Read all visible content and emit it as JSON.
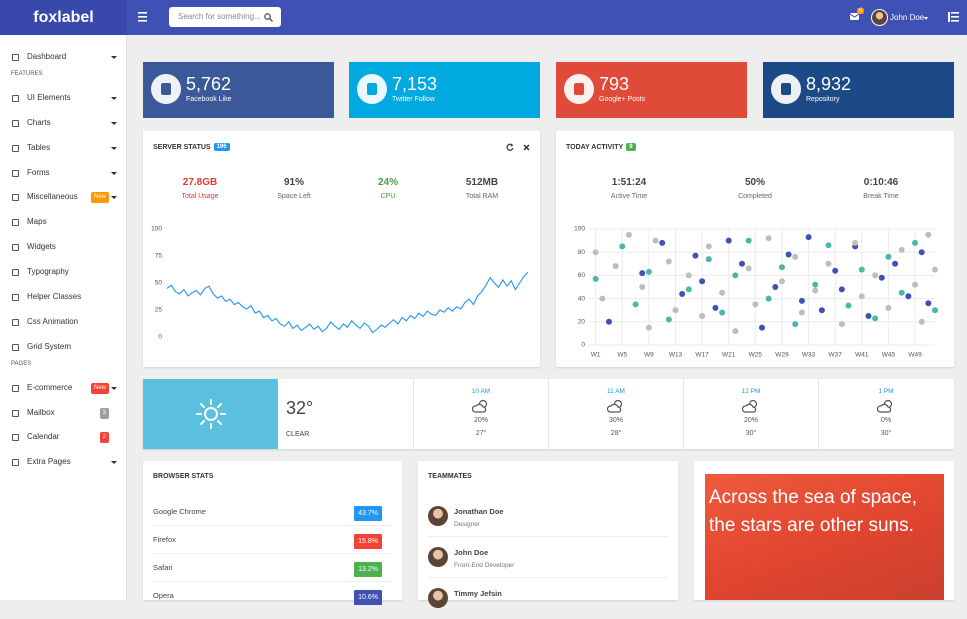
{
  "topbar": {
    "brand": "foxlabel",
    "search_placeholder": "Search for something...",
    "notification_count": "6",
    "user": "John Doe"
  },
  "sidebar": {
    "items": [
      {
        "label": "Dashboard",
        "caret": true
      },
      {
        "section": "FEATURES"
      },
      {
        "label": "UI Elements",
        "caret": true
      },
      {
        "label": "Charts",
        "caret": true
      },
      {
        "label": "Tables",
        "caret": true
      },
      {
        "label": "Forms",
        "caret": true
      },
      {
        "label": "Miscellaneous",
        "badge": "New",
        "badge_color": "#ff9800",
        "caret": true
      },
      {
        "label": "Maps"
      },
      {
        "label": "Widgets"
      },
      {
        "label": "Typography"
      },
      {
        "label": "Helper Classes"
      },
      {
        "label": "Css Animation"
      },
      {
        "label": "Grid System"
      },
      {
        "section": "PAGES"
      },
      {
        "label": "E-commerce",
        "badge": "New",
        "badge_color": "#f44336",
        "caret": true
      },
      {
        "label": "Mailbox",
        "badge": "3",
        "badge_color": "#9e9e9e"
      },
      {
        "label": "Calendar",
        "badge": "2",
        "badge_color": "#f44336"
      },
      {
        "label": "Extra Pages",
        "caret": true
      }
    ]
  },
  "stats": [
    {
      "value": "5,762",
      "label": "Facebook Like",
      "color": "#3b5998"
    },
    {
      "value": "7,153",
      "label": "Twitter Follow",
      "color": "#00a9e0"
    },
    {
      "value": "793",
      "label": "Google+ Posts",
      "color": "#e04a39"
    },
    {
      "value": "8,932",
      "label": "Repository",
      "color": "#1c4a86"
    }
  ],
  "server_status": {
    "title": "SERVER STATUS",
    "badge": "196",
    "metrics": [
      {
        "value": "27.8GB",
        "label": "Total Usage",
        "color": "#e53935"
      },
      {
        "value": "91%",
        "label": "Space Left",
        "color": "#444444"
      },
      {
        "value": "24%",
        "label": "CPU",
        "color": "#43a047"
      },
      {
        "value": "512MB",
        "label": "Total RAM",
        "color": "#444444"
      }
    ],
    "chart": {
      "type": "line",
      "color": "#2196f3",
      "ylim": [
        0,
        100
      ],
      "yticks": [
        0,
        25,
        50,
        75,
        100
      ],
      "values": [
        45,
        48,
        42,
        40,
        44,
        38,
        41,
        43,
        39,
        45,
        47,
        40,
        36,
        38,
        33,
        35,
        30,
        32,
        28,
        26,
        29,
        22,
        24,
        18,
        20,
        15,
        17,
        12,
        10,
        14,
        8,
        11,
        6,
        9,
        12,
        7,
        10,
        5,
        8,
        14,
        10,
        7,
        12,
        9,
        15,
        11,
        8,
        13,
        10,
        4,
        7,
        11,
        9,
        13,
        16,
        12,
        18,
        15,
        20,
        17,
        22,
        19,
        24,
        21,
        20,
        25,
        23,
        27,
        24,
        28,
        26,
        32,
        35,
        30,
        38,
        42,
        48,
        55,
        50,
        46,
        53,
        47,
        52,
        44,
        50,
        56,
        60
      ]
    }
  },
  "today_activity": {
    "title": "TODAY ACTIVITY",
    "badge": "9",
    "metrics": [
      {
        "value": "1:51:24",
        "label": "Active Time"
      },
      {
        "value": "50%",
        "label": "Completed"
      },
      {
        "value": "0:10:46",
        "label": "Break Time"
      }
    ],
    "chart": {
      "type": "scatter",
      "grid": true,
      "xlim": [
        0,
        52
      ],
      "ylim": [
        0,
        100
      ],
      "yticks": [
        0,
        20,
        40,
        60,
        80,
        100
      ],
      "xticks": [
        {
          "value": 1,
          "label": "W1"
        },
        {
          "value": 5,
          "label": "W5"
        },
        {
          "value": 9,
          "label": "W9"
        },
        {
          "value": 13,
          "label": "W13"
        },
        {
          "value": 17,
          "label": "W17"
        },
        {
          "value": 21,
          "label": "W21"
        },
        {
          "value": 25,
          "label": "W25"
        },
        {
          "value": 29,
          "label": "W29"
        },
        {
          "value": 33,
          "label": "W33"
        },
        {
          "value": 37,
          "label": "W37"
        },
        {
          "value": 41,
          "label": "W41"
        },
        {
          "value": 45,
          "label": "W45"
        },
        {
          "value": 49,
          "label": "W49"
        }
      ],
      "series": [
        {
          "color": "#3f51b5",
          "x": [
            3,
            8,
            11,
            14,
            16,
            17,
            19,
            21,
            23,
            26,
            28,
            30,
            32,
            33,
            35,
            37,
            38,
            40,
            42,
            44,
            46,
            48,
            50,
            51
          ],
          "y": [
            20,
            62,
            88,
            44,
            77,
            55,
            32,
            90,
            70,
            15,
            50,
            78,
            38,
            93,
            30,
            64,
            48,
            85,
            25,
            58,
            70,
            42,
            80,
            36
          ]
        },
        {
          "color": "#4db6ac",
          "x": [
            1,
            5,
            7,
            9,
            12,
            15,
            18,
            20,
            22,
            24,
            27,
            29,
            31,
            34,
            36,
            39,
            41,
            43,
            45,
            47,
            49,
            52
          ],
          "y": [
            57,
            85,
            35,
            63,
            22,
            48,
            74,
            28,
            60,
            90,
            40,
            67,
            18,
            52,
            86,
            34,
            65,
            23,
            76,
            45,
            88,
            30
          ]
        },
        {
          "color": "#bdbdbd",
          "x": [
            1,
            2,
            4,
            6,
            8,
            9,
            10,
            12,
            13,
            15,
            17,
            18,
            20,
            22,
            24,
            25,
            27,
            29,
            31,
            32,
            34,
            36,
            38,
            40,
            41,
            43,
            45,
            47,
            49,
            50,
            51,
            52
          ],
          "y": [
            80,
            40,
            68,
            95,
            50,
            15,
            90,
            72,
            30,
            60,
            25,
            85,
            45,
            12,
            66,
            35,
            92,
            55,
            76,
            28,
            47,
            70,
            18,
            88,
            42,
            60,
            32,
            82,
            52,
            20,
            95,
            65
          ]
        }
      ]
    }
  },
  "weather": {
    "current": {
      "temp": "32°",
      "condition": "CLEAR"
    },
    "forecast": [
      {
        "time": "10 AM",
        "rain": "20%",
        "temp": "27°"
      },
      {
        "time": "11 AM",
        "rain": "30%",
        "temp": "28°"
      },
      {
        "time": "12 PM",
        "rain": "20%",
        "temp": "30°"
      },
      {
        "time": "1 PM",
        "rain": "0%",
        "temp": "30°"
      }
    ]
  },
  "browser_stats": {
    "title": "BROWSER STATS",
    "rows": [
      {
        "name": "Google Chrome",
        "value": "43.7%",
        "color": "#2196f3"
      },
      {
        "name": "Firefox",
        "value": "15.8%",
        "color": "#f44336"
      },
      {
        "name": "Safari",
        "value": "13.2%",
        "color": "#4caf50"
      },
      {
        "name": "Opera",
        "value": "10.6%",
        "color": "#3f51b5"
      }
    ]
  },
  "teammates": {
    "title": "TEAMMATES",
    "members": [
      {
        "name": "Jonathan Doe",
        "role": "Designer"
      },
      {
        "name": "John Doe",
        "role": "Front-End Developer"
      },
      {
        "name": "Timmy Jefsin"
      }
    ]
  },
  "quote": {
    "text": "Across the sea of space, the stars are other suns."
  }
}
